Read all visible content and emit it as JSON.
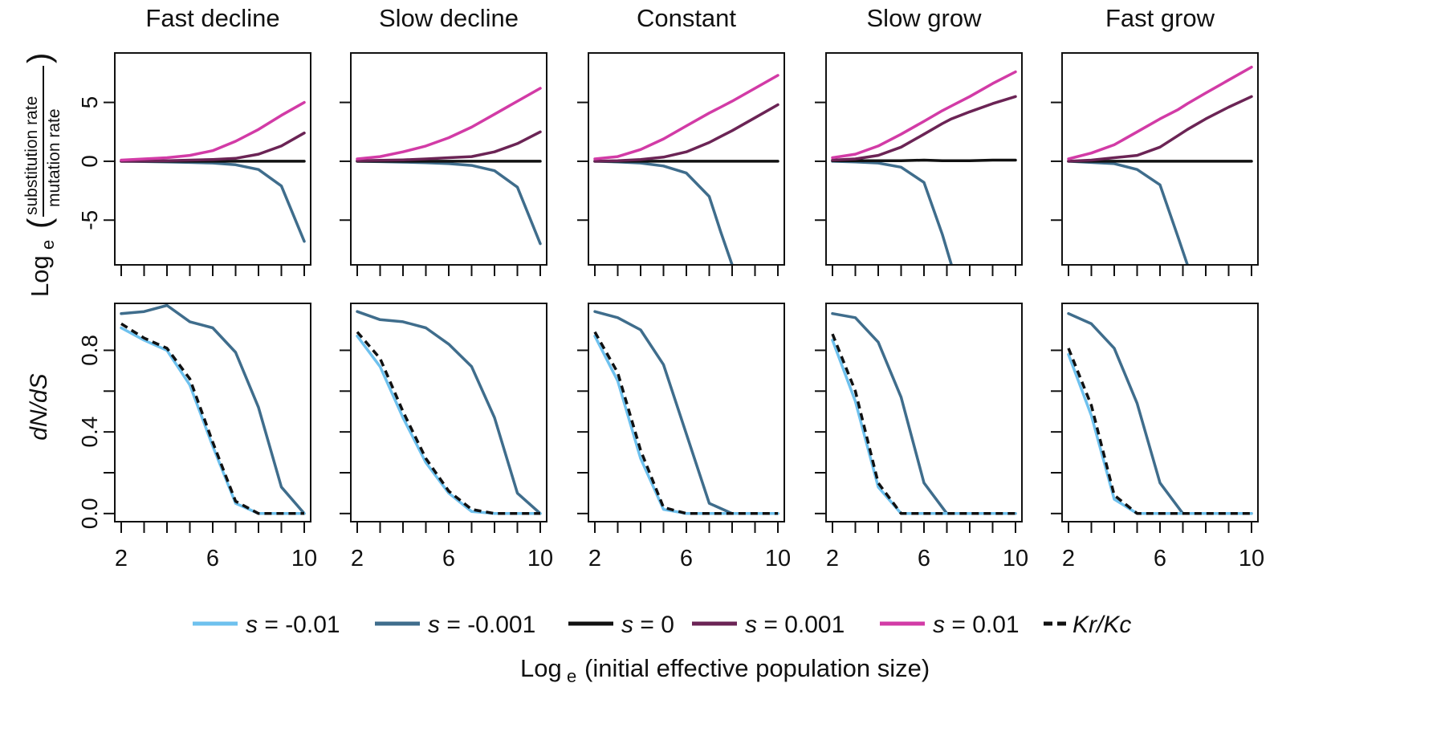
{
  "figure": {
    "top_row_ylabel_prefix": "Log",
    "top_row_ylabel_subscript": "e",
    "top_row_ylabel_numerator": "substitution rate",
    "top_row_ylabel_denominator": "mutation rate",
    "bottom_row_ylabel": "dN/dS",
    "xlabel_prefix": "Log",
    "xlabel_subscript": "e",
    "xlabel_rest": " (initial effective population size)"
  },
  "legend": [
    {
      "label": "s = -0.01",
      "color": "#6ec1ee",
      "dash": false
    },
    {
      "label": "s = -0.001",
      "color": "#3f6d8c",
      "dash": false
    },
    {
      "label": "s = 0",
      "color": "#111111",
      "dash": false
    },
    {
      "label": "s = 0.001",
      "color": "#6b2455",
      "dash": false
    },
    {
      "label": "s = 0.01",
      "color": "#d23ba6",
      "dash": false
    },
    {
      "label": "Kr/Kc",
      "color": "#111111",
      "dash": true
    }
  ],
  "chart_data": [
    {
      "type": "line",
      "title": "Fast decline",
      "row": "substitution",
      "x": [
        2,
        3,
        4,
        5,
        6,
        7,
        8,
        9,
        10
      ],
      "xlim": [
        2,
        10
      ],
      "ylim": [
        -8.8,
        9.2
      ],
      "xticks": [
        2,
        6,
        10
      ],
      "yticks": [
        -5,
        0,
        5
      ],
      "series": [
        {
          "name": "s = -0.001",
          "color": "#3f6d8c",
          "values": [
            0,
            -0.02,
            -0.05,
            -0.1,
            -0.15,
            -0.3,
            -0.7,
            -2.1,
            -6.8
          ]
        },
        {
          "name": "s = 0",
          "color": "#111111",
          "values": [
            0,
            0,
            0,
            0,
            0,
            0,
            0,
            0,
            0
          ]
        },
        {
          "name": "s = 0.001",
          "color": "#6b2455",
          "values": [
            0,
            0.02,
            0.05,
            0.1,
            0.15,
            0.25,
            0.6,
            1.3,
            2.4
          ]
        },
        {
          "name": "s = 0.01",
          "color": "#d23ba6",
          "values": [
            0.1,
            0.2,
            0.3,
            0.5,
            0.9,
            1.7,
            2.7,
            3.9,
            5.0
          ]
        }
      ]
    },
    {
      "type": "line",
      "title": "Slow decline",
      "row": "substitution",
      "x": [
        2,
        3,
        4,
        5,
        6,
        7,
        8,
        9,
        10
      ],
      "xlim": [
        2,
        10
      ],
      "ylim": [
        -8.8,
        9.2
      ],
      "xticks": [
        2,
        6,
        10
      ],
      "yticks": [
        -5,
        0,
        5
      ],
      "series": [
        {
          "name": "s = -0.001",
          "color": "#3f6d8c",
          "values": [
            0,
            -0.03,
            -0.07,
            -0.12,
            -0.2,
            -0.35,
            -0.8,
            -2.2,
            -7.0
          ]
        },
        {
          "name": "s = 0",
          "color": "#111111",
          "values": [
            0,
            0,
            0,
            0,
            0,
            0,
            0,
            0,
            0
          ]
        },
        {
          "name": "s = 0.001",
          "color": "#6b2455",
          "values": [
            0.05,
            0.08,
            0.12,
            0.2,
            0.3,
            0.4,
            0.8,
            1.5,
            2.5
          ]
        },
        {
          "name": "s = 0.01",
          "color": "#d23ba6",
          "values": [
            0.2,
            0.4,
            0.8,
            1.3,
            2.0,
            2.9,
            4.0,
            5.1,
            6.2
          ]
        }
      ]
    },
    {
      "type": "line",
      "title": "Constant",
      "row": "substitution",
      "x": [
        2,
        3,
        4,
        5,
        6,
        7,
        7.5,
        8,
        9,
        10
      ],
      "xlim": [
        2,
        10
      ],
      "ylim": [
        -8.8,
        9.2
      ],
      "xticks": [
        2,
        6,
        10
      ],
      "yticks": [
        -5,
        0,
        5
      ],
      "series": [
        {
          "name": "s = -0.001",
          "color": "#3f6d8c",
          "values": [
            0,
            -0.05,
            -0.15,
            -0.4,
            -1.0,
            -3.0,
            -6.0,
            -8.8,
            null,
            null
          ]
        },
        {
          "name": "s = 0",
          "color": "#111111",
          "values": [
            0,
            0,
            0,
            0,
            0,
            0,
            0,
            0,
            0,
            0
          ]
        },
        {
          "name": "s = 0.001",
          "color": "#6b2455",
          "values": [
            0,
            0.05,
            0.15,
            0.35,
            0.8,
            1.6,
            2.1,
            2.6,
            3.7,
            4.8
          ]
        },
        {
          "name": "s = 0.01",
          "color": "#d23ba6",
          "values": [
            0.2,
            0.4,
            1.0,
            1.9,
            3.0,
            4.1,
            4.6,
            5.1,
            6.2,
            7.3
          ]
        }
      ]
    },
    {
      "type": "line",
      "title": "Slow grow",
      "row": "substitution",
      "x": [
        2,
        3,
        4,
        5,
        6,
        6.8,
        7.2,
        8,
        9,
        10
      ],
      "xlim": [
        2,
        10
      ],
      "ylim": [
        -8.8,
        9.2
      ],
      "xticks": [
        2,
        6,
        10
      ],
      "yticks": [
        -5,
        0,
        5
      ],
      "series": [
        {
          "name": "s = -0.001",
          "color": "#3f6d8c",
          "values": [
            0,
            -0.05,
            -0.15,
            -0.5,
            -1.8,
            -6.2,
            -8.8,
            null,
            null,
            null
          ]
        },
        {
          "name": "s = 0",
          "color": "#111111",
          "values": [
            0.05,
            0.05,
            0.05,
            0.05,
            0.1,
            0.05,
            0.05,
            0.05,
            0.1,
            0.1
          ]
        },
        {
          "name": "s = 0.001",
          "color": "#6b2455",
          "values": [
            0.1,
            0.2,
            0.5,
            1.2,
            2.3,
            3.2,
            3.6,
            4.2,
            4.9,
            5.5
          ]
        },
        {
          "name": "s = 0.01",
          "color": "#d23ba6",
          "values": [
            0.3,
            0.6,
            1.3,
            2.3,
            3.4,
            4.3,
            4.7,
            5.5,
            6.6,
            7.6
          ]
        }
      ]
    },
    {
      "type": "line",
      "title": "Fast grow",
      "row": "substitution",
      "x": [
        2,
        3,
        4,
        5,
        6,
        6.8,
        7.2,
        8,
        9,
        10
      ],
      "xlim": [
        2,
        10
      ],
      "ylim": [
        -8.8,
        9.2
      ],
      "xticks": [
        2,
        6,
        10
      ],
      "yticks": [
        -5,
        0,
        5
      ],
      "series": [
        {
          "name": "s = -0.001",
          "color": "#3f6d8c",
          "values": [
            0,
            -0.1,
            -0.2,
            -0.7,
            -2.0,
            -6.5,
            -8.8,
            null,
            null,
            null
          ]
        },
        {
          "name": "s = 0",
          "color": "#111111",
          "values": [
            0,
            0,
            0,
            0,
            0,
            0,
            0,
            0,
            0,
            0
          ]
        },
        {
          "name": "s = 0.001",
          "color": "#6b2455",
          "values": [
            0,
            0.1,
            0.3,
            0.5,
            1.2,
            2.2,
            2.7,
            3.6,
            4.6,
            5.5
          ]
        },
        {
          "name": "s = 0.01",
          "color": "#d23ba6",
          "values": [
            0.2,
            0.7,
            1.4,
            2.5,
            3.6,
            4.4,
            4.9,
            5.8,
            6.9,
            8.0
          ]
        }
      ]
    },
    {
      "type": "line",
      "row": "dnds",
      "x": [
        2,
        3,
        4,
        5,
        6,
        7,
        8,
        9,
        10
      ],
      "xlim": [
        2,
        10
      ],
      "ylim": [
        -0.04,
        1.03
      ],
      "xticks": [
        2,
        6,
        10
      ],
      "yticks": [
        0.0,
        0.2,
        0.4,
        0.6,
        0.8
      ],
      "ytick_labels": [
        "0.0",
        "",
        "0.4",
        "",
        "0.8"
      ],
      "series": [
        {
          "name": "s = -0.001",
          "color": "#3f6d8c",
          "values": [
            0.98,
            0.99,
            1.02,
            0.94,
            0.91,
            0.79,
            0.52,
            0.13,
            0.0
          ]
        },
        {
          "name": "s = -0.01",
          "color": "#6ec1ee",
          "values": [
            0.91,
            0.85,
            0.8,
            0.63,
            0.33,
            0.05,
            0.0,
            0.0,
            0.0
          ]
        },
        {
          "name": "Kr/Kc",
          "color": "#111111",
          "dash": true,
          "values": [
            0.93,
            0.86,
            0.81,
            0.66,
            0.35,
            0.06,
            0.0,
            0.0,
            0.0
          ]
        }
      ]
    },
    {
      "type": "line",
      "row": "dnds",
      "x": [
        2,
        3,
        4,
        5,
        6,
        7,
        8,
        9,
        10
      ],
      "xlim": [
        2,
        10
      ],
      "ylim": [
        -0.04,
        1.03
      ],
      "xticks": [
        2,
        6,
        10
      ],
      "yticks": [
        0.0,
        0.2,
        0.4,
        0.6,
        0.8
      ],
      "ytick_labels": [
        "0.0",
        "",
        "0.4",
        "",
        "0.8"
      ],
      "series": [
        {
          "name": "s = -0.001",
          "color": "#3f6d8c",
          "values": [
            0.99,
            0.95,
            0.94,
            0.91,
            0.83,
            0.72,
            0.47,
            0.1,
            0.0
          ]
        },
        {
          "name": "s = -0.01",
          "color": "#6ec1ee",
          "values": [
            0.87,
            0.72,
            0.47,
            0.25,
            0.1,
            0.01,
            0.0,
            0.0,
            0.0
          ]
        },
        {
          "name": "Kr/Kc",
          "color": "#111111",
          "dash": true,
          "values": [
            0.89,
            0.76,
            0.5,
            0.27,
            0.11,
            0.02,
            0.0,
            0.0,
            0.0
          ]
        }
      ]
    },
    {
      "type": "line",
      "row": "dnds",
      "x": [
        2,
        3,
        4,
        5,
        6,
        7,
        8,
        9,
        10
      ],
      "xlim": [
        2,
        10
      ],
      "ylim": [
        -0.04,
        1.03
      ],
      "xticks": [
        2,
        6,
        10
      ],
      "yticks": [
        0.0,
        0.2,
        0.4,
        0.6,
        0.8
      ],
      "ytick_labels": [
        "0.0",
        "",
        "0.4",
        "",
        "0.8"
      ],
      "series": [
        {
          "name": "s = -0.001",
          "color": "#3f6d8c",
          "values": [
            0.99,
            0.96,
            0.9,
            0.73,
            0.39,
            0.05,
            0.0,
            0.0,
            0.0
          ]
        },
        {
          "name": "s = -0.01",
          "color": "#6ec1ee",
          "values": [
            0.87,
            0.65,
            0.27,
            0.02,
            0.0,
            0.0,
            0.0,
            0.0,
            0.0
          ]
        },
        {
          "name": "Kr/Kc",
          "color": "#111111",
          "dash": true,
          "values": [
            0.89,
            0.69,
            0.31,
            0.03,
            0.0,
            0.0,
            0.0,
            0.0,
            0.0
          ]
        }
      ]
    },
    {
      "type": "line",
      "row": "dnds",
      "x": [
        2,
        3,
        4,
        5,
        6,
        7,
        8,
        9,
        10
      ],
      "xlim": [
        2,
        10
      ],
      "ylim": [
        -0.04,
        1.03
      ],
      "xticks": [
        2,
        6,
        10
      ],
      "yticks": [
        0.0,
        0.2,
        0.4,
        0.6,
        0.8
      ],
      "ytick_labels": [
        "0.0",
        "",
        "0.4",
        "",
        "0.8"
      ],
      "series": [
        {
          "name": "s = -0.001",
          "color": "#3f6d8c",
          "values": [
            0.98,
            0.96,
            0.84,
            0.57,
            0.15,
            0.0,
            0.0,
            0.0,
            0.0
          ]
        },
        {
          "name": "s = -0.01",
          "color": "#6ec1ee",
          "values": [
            0.85,
            0.55,
            0.13,
            0.0,
            0.0,
            0.0,
            0.0,
            0.0,
            0.0
          ]
        },
        {
          "name": "Kr/Kc",
          "color": "#111111",
          "dash": true,
          "values": [
            0.88,
            0.6,
            0.15,
            0.0,
            0.0,
            0.0,
            0.0,
            0.0,
            0.0
          ]
        }
      ]
    },
    {
      "type": "line",
      "row": "dnds",
      "x": [
        2,
        3,
        4,
        5,
        6,
        7,
        8,
        9,
        10
      ],
      "xlim": [
        2,
        10
      ],
      "ylim": [
        -0.04,
        1.03
      ],
      "xticks": [
        2,
        6,
        10
      ],
      "yticks": [
        0.0,
        0.2,
        0.4,
        0.6,
        0.8
      ],
      "ytick_labels": [
        "0.0",
        "",
        "0.4",
        "",
        "0.8"
      ],
      "series": [
        {
          "name": "s = -0.001",
          "color": "#3f6d8c",
          "values": [
            0.98,
            0.93,
            0.81,
            0.54,
            0.15,
            0.0,
            0.0,
            0.0,
            0.0
          ]
        },
        {
          "name": "s = -0.01",
          "color": "#6ec1ee",
          "values": [
            0.78,
            0.48,
            0.07,
            0.0,
            0.0,
            0.0,
            0.0,
            0.0,
            0.0
          ]
        },
        {
          "name": "Kr/Kc",
          "color": "#111111",
          "dash": true,
          "values": [
            0.81,
            0.53,
            0.09,
            0.0,
            0.0,
            0.0,
            0.0,
            0.0,
            0.0
          ]
        }
      ]
    }
  ]
}
